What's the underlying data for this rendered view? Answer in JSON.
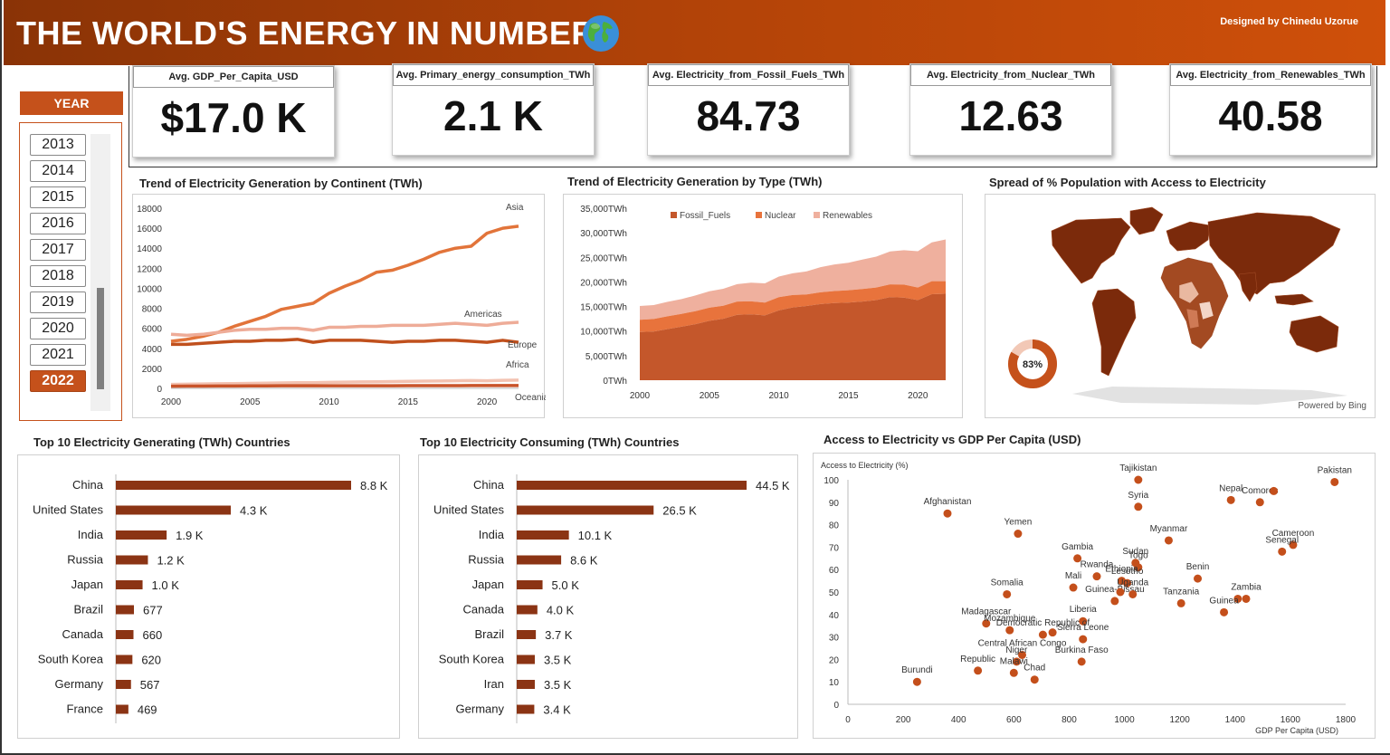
{
  "header": {
    "title": "THE WORLD'S ENERGY IN NUMBERS",
    "designer": "Designed by Chinedu Uzorue"
  },
  "kpis": [
    {
      "label": "Avg. GDP_Per_Capita_USD",
      "value": "$17.0 K"
    },
    {
      "label": "Avg. Primary_energy_consumption_TWh",
      "value": "2.1 K"
    },
    {
      "label": "Avg. Electricity_from_Fossil_Fuels_TWh",
      "value": "84.73"
    },
    {
      "label": "Avg. Electricity_from_Nuclear_TWh",
      "value": "12.63"
    },
    {
      "label": "Avg. Electricity_from_Renewables_TWh",
      "value": "40.58"
    }
  ],
  "slicer": {
    "title": "YEAR",
    "years": [
      "2013",
      "2014",
      "2015",
      "2016",
      "2017",
      "2018",
      "2019",
      "2020",
      "2021",
      "2022"
    ],
    "selected": "2022"
  },
  "colors": {
    "accent": "#c5511b",
    "dark": "#8a3306",
    "asia": "#e2743a",
    "americas": "#eeac98",
    "europe": "#c0501d",
    "africa": "#f3c2b1",
    "oceania": "#c9542a",
    "fossil": "#c4572b",
    "nuclear": "#e8733c",
    "renewables": "#efb09e",
    "bar": "#8b3414",
    "scatter": "#c44f1b",
    "map": "#7b2a0b"
  },
  "chart_data": [
    {
      "id": "continent",
      "type": "line",
      "title": "Trend of Electricity Generation by Continent (TWh)",
      "x": [
        2000,
        2001,
        2002,
        2003,
        2004,
        2005,
        2006,
        2007,
        2008,
        2009,
        2010,
        2011,
        2012,
        2013,
        2014,
        2015,
        2016,
        2017,
        2018,
        2019,
        2020,
        2021,
        2022
      ],
      "xticks": [
        "2000",
        "2005",
        "2010",
        "2015",
        "2020"
      ],
      "yticks": [
        "0",
        "2000",
        "4000",
        "6000",
        "8000",
        "10000",
        "12000",
        "14000",
        "16000",
        "18000"
      ],
      "ylim": [
        0,
        18000
      ],
      "series": [
        {
          "name": "Asia",
          "values": [
            4700,
            4900,
            5200,
            5600,
            6200,
            6700,
            7200,
            7900,
            8200,
            8500,
            9500,
            10200,
            10800,
            11600,
            11800,
            12300,
            12900,
            13600,
            14000,
            14200,
            15500,
            16000,
            16200
          ]
        },
        {
          "name": "Americas",
          "values": [
            5400,
            5300,
            5400,
            5600,
            5800,
            5900,
            5900,
            6000,
            6000,
            5800,
            6100,
            6100,
            6200,
            6200,
            6300,
            6300,
            6300,
            6400,
            6500,
            6400,
            6300,
            6500,
            6600
          ]
        },
        {
          "name": "Europe",
          "values": [
            4400,
            4400,
            4500,
            4600,
            4700,
            4700,
            4800,
            4800,
            4900,
            4600,
            4800,
            4800,
            4800,
            4700,
            4600,
            4700,
            4700,
            4800,
            4800,
            4700,
            4600,
            4800,
            4600
          ]
        },
        {
          "name": "Africa",
          "values": [
            400,
            420,
            440,
            460,
            480,
            500,
            520,
            540,
            560,
            560,
            600,
            620,
            640,
            660,
            680,
            700,
            720,
            740,
            760,
            780,
            760,
            800,
            820
          ]
        },
        {
          "name": "Oceania",
          "values": [
            220,
            225,
            230,
            235,
            240,
            245,
            250,
            255,
            260,
            260,
            265,
            265,
            265,
            265,
            265,
            270,
            270,
            275,
            275,
            280,
            280,
            280,
            280
          ]
        }
      ]
    },
    {
      "id": "type",
      "type": "area",
      "title": "Trend of Electricity Generation by Type (TWh)",
      "x": [
        2000,
        2001,
        2002,
        2003,
        2004,
        2005,
        2006,
        2007,
        2008,
        2009,
        2010,
        2011,
        2012,
        2013,
        2014,
        2015,
        2016,
        2017,
        2018,
        2019,
        2020,
        2021,
        2022
      ],
      "xticks": [
        "2000",
        "2005",
        "2010",
        "2015",
        "2020"
      ],
      "yticks": [
        "0TWh",
        "5,000TWh",
        "10,000TWh",
        "15,000TWh",
        "20,000TWh",
        "25,000TWh",
        "30,000TWh",
        "35,000TWh"
      ],
      "ylim": [
        0,
        35000
      ],
      "series": [
        {
          "name": "Fossil_Fuels",
          "values": [
            9800,
            9900,
            10400,
            10900,
            11400,
            12100,
            12500,
            13300,
            13400,
            13200,
            14200,
            14800,
            15100,
            15500,
            15700,
            15800,
            16000,
            16300,
            16900,
            16800,
            16300,
            17500,
            17600
          ]
        },
        {
          "name": "Nuclear",
          "values": [
            2500,
            2550,
            2600,
            2600,
            2650,
            2650,
            2650,
            2700,
            2650,
            2600,
            2700,
            2550,
            2350,
            2400,
            2450,
            2500,
            2550,
            2550,
            2600,
            2650,
            2550,
            2650,
            2550
          ]
        },
        {
          "name": "Renewables",
          "values": [
            2800,
            2850,
            2950,
            3000,
            3200,
            3350,
            3450,
            3550,
            3800,
            3900,
            4200,
            4400,
            4700,
            5100,
            5400,
            5600,
            6000,
            6300,
            6700,
            7000,
            7400,
            7900,
            8500
          ]
        }
      ]
    },
    {
      "id": "generating",
      "type": "bar",
      "title": "Top 10 Electricity Generating (TWh) Countries",
      "categories": [
        "China",
        "United States",
        "India",
        "Russia",
        "Japan",
        "Brazil",
        "Canada",
        "South Korea",
        "Germany",
        "France"
      ],
      "values": [
        8800,
        4300,
        1900,
        1200,
        1000,
        677,
        660,
        620,
        567,
        469
      ],
      "labels": [
        "8.8 K",
        "4.3 K",
        "1.9 K",
        "1.2 K",
        "1.0 K",
        "677",
        "660",
        "620",
        "567",
        "469"
      ]
    },
    {
      "id": "consuming",
      "type": "bar",
      "title": "Top 10 Electricity Consuming (TWh) Countries",
      "categories": [
        "China",
        "United States",
        "India",
        "Russia",
        "Japan",
        "Canada",
        "Brazil",
        "South Korea",
        "Iran",
        "Germany"
      ],
      "values": [
        44500,
        26500,
        10100,
        8600,
        5000,
        4000,
        3700,
        3500,
        3500,
        3400
      ],
      "labels": [
        "44.5 K",
        "26.5 K",
        "10.1 K",
        "8.6 K",
        "5.0 K",
        "4.0 K",
        "3.7 K",
        "3.5 K",
        "3.5 K",
        "3.4 K"
      ]
    },
    {
      "id": "access",
      "type": "scatter",
      "title": "Access to Electricity vs GDP Per Capita (USD)",
      "xlabel": "GDP Per Capita (USD)",
      "ylabel": "Access to Electricity (%)",
      "xlim": [
        0,
        1800
      ],
      "ylim": [
        0,
        100
      ],
      "xticks": [
        "0",
        "200",
        "400",
        "600",
        "800",
        "1000",
        "1200",
        "1400",
        "1600",
        "1800"
      ],
      "yticks": [
        "0",
        "10",
        "20",
        "30",
        "40",
        "50",
        "60",
        "70",
        "80",
        "90",
        "100"
      ],
      "points": [
        {
          "label": "Tajikistan",
          "x": 1050,
          "y": 100
        },
        {
          "label": "Syria",
          "x": 1050,
          "y": 88
        },
        {
          "label": "Pakistan",
          "x": 1760,
          "y": 99
        },
        {
          "label": "Nepal",
          "x": 1385,
          "y": 91
        },
        {
          "label": "Comoros",
          "x": 1490,
          "y": 90
        },
        {
          "label": "",
          "x": 1540,
          "y": 95
        },
        {
          "label": "Afghanistan",
          "x": 360,
          "y": 85
        },
        {
          "label": "Yemen",
          "x": 615,
          "y": 76
        },
        {
          "label": "Myanmar",
          "x": 1160,
          "y": 73
        },
        {
          "label": "Cameroon",
          "x": 1610,
          "y": 71
        },
        {
          "label": "Senegal",
          "x": 1570,
          "y": 68
        },
        {
          "label": "Gambia",
          "x": 830,
          "y": 65
        },
        {
          "label": "Sudan",
          "x": 1040,
          "y": 63
        },
        {
          "label": "Togo",
          "x": 1050,
          "y": 61
        },
        {
          "label": "Benin",
          "x": 1265,
          "y": 56
        },
        {
          "label": "Ethiopia",
          "x": 990,
          "y": 55
        },
        {
          "label": "Rwanda",
          "x": 900,
          "y": 57
        },
        {
          "label": "Lesotho",
          "x": 1010,
          "y": 54
        },
        {
          "label": "Mali",
          "x": 815,
          "y": 52
        },
        {
          "label": "Zambia",
          "x": 1440,
          "y": 47
        },
        {
          "label": "",
          "x": 1410,
          "y": 47
        },
        {
          "label": "Somalia",
          "x": 575,
          "y": 49
        },
        {
          "label": "Tanzania",
          "x": 1205,
          "y": 45
        },
        {
          "label": "Guinea-Bissau",
          "x": 965,
          "y": 46
        },
        {
          "label": "Uganda",
          "x": 1030,
          "y": 49
        },
        {
          "label": "",
          "x": 985,
          "y": 50
        },
        {
          "label": "Guinea",
          "x": 1360,
          "y": 41
        },
        {
          "label": "Madagascar",
          "x": 500,
          "y": 36
        },
        {
          "label": "Liberia",
          "x": 850,
          "y": 37
        },
        {
          "label": "Mozambique",
          "x": 585,
          "y": 33
        },
        {
          "label": "Democratic Republic of",
          "x": 705,
          "y": 31
        },
        {
          "label": "Sierra Leone",
          "x": 850,
          "y": 29
        },
        {
          "label": "Central African Congo",
          "x": 630,
          "y": 22
        },
        {
          "label": "Burkina Faso",
          "x": 845,
          "y": 19
        },
        {
          "label": "Niger",
          "x": 610,
          "y": 19
        },
        {
          "label": "Republic",
          "x": 470,
          "y": 15
        },
        {
          "label": "Malawi",
          "x": 600,
          "y": 14
        },
        {
          "label": "Chad",
          "x": 675,
          "y": 11
        },
        {
          "label": "Burundi",
          "x": 250,
          "y": 10
        },
        {
          "label": "",
          "x": 740,
          "y": 32
        }
      ]
    }
  ],
  "map": {
    "title": "Spread of % Population with Access to Electricity",
    "donut_label": "83%",
    "donut_value": 83,
    "credit": "Powered by Bing"
  }
}
